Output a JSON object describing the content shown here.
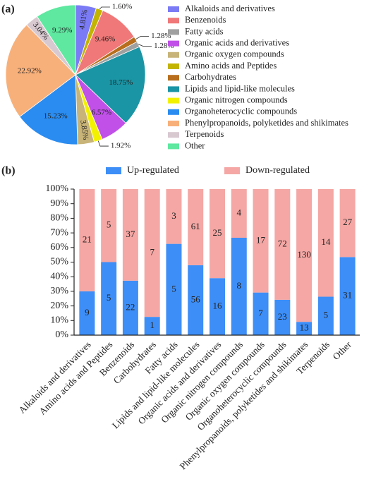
{
  "chart_data": [
    {
      "type": "pie",
      "panel_label": "(a)",
      "categories": [
        "Alkaloids and derivatives",
        "Amino acids and Peptides",
        "Benzenoids",
        "Carbohydrates",
        "Fatty acids",
        "Lipids and lipid-like molecules",
        "Organic acids and derivatives",
        "Organic nitrogen compounds",
        "Organic oxygen compounds",
        "Organoheterocyclic compounds",
        "Phenylpropanoids, polyketides and shikimates",
        "Terpenoids",
        "Other"
      ],
      "values": [
        4.81,
        1.6,
        9.46,
        1.28,
        1.28,
        18.75,
        6.57,
        1.92,
        3.85,
        15.23,
        22.92,
        3.04,
        9.29
      ],
      "value_labels": [
        "4.81%",
        "1.60%",
        "9.46%",
        "1.28%",
        "1.28%",
        "18.75%",
        "6.57%",
        "1.92%",
        "3.85%",
        "15.23%",
        "22.92%",
        "3.04%",
        "9.29%"
      ],
      "colors": [
        "#7b7bf5",
        "#c2b400",
        "#f07878",
        "#b86e1c",
        "#a0a0a0",
        "#1a95a5",
        "#c050e8",
        "#f2f200",
        "#c8b478",
        "#2a8cf0",
        "#f8b07a",
        "#d8c8d0",
        "#5ee8a0"
      ],
      "legend_order": [
        0,
        2,
        4,
        6,
        8,
        1,
        3,
        5,
        7,
        9,
        10,
        11,
        12
      ]
    },
    {
      "type": "bar",
      "stacking": "percent",
      "panel_label": "(b)",
      "categories": [
        "Alkaloids and derivatives",
        "Amino acids and Peptides",
        "Benzenoids",
        "Carbohydrates",
        "Fatty acids",
        "Lipids and lipid-like molecules",
        "Organic acids and derivatives",
        "Organic nitrogen compounds",
        "Organic oxygen compounds",
        "Organoheterocyclic compounds",
        "Phenylpropanoids, polyketides and shikimates",
        "Terpenoids",
        "Other"
      ],
      "series": [
        {
          "name": "Up-regulated",
          "color": "#3d8ef7",
          "values": [
            9,
            5,
            22,
            1,
            5,
            56,
            16,
            8,
            7,
            23,
            13,
            5,
            31
          ]
        },
        {
          "name": "Down-regulated",
          "color": "#f4a7a4",
          "values": [
            21,
            5,
            37,
            7,
            3,
            61,
            25,
            4,
            17,
            72,
            130,
            14,
            27
          ]
        }
      ],
      "ylim": [
        0,
        100
      ],
      "yticks": [
        {
          "value": 0,
          "label": "0%"
        },
        {
          "value": 10,
          "label": "10%"
        },
        {
          "value": 20,
          "label": "20%"
        },
        {
          "value": 30,
          "label": "30%"
        },
        {
          "value": 40,
          "label": "40%"
        },
        {
          "value": 50,
          "label": "50%"
        },
        {
          "value": 60,
          "label": "60%"
        },
        {
          "value": 70,
          "label": "70%"
        },
        {
          "value": 80,
          "label": "80%"
        },
        {
          "value": 90,
          "label": "90%"
        },
        {
          "value": 100,
          "label": "100%"
        }
      ],
      "legend": "top"
    }
  ]
}
